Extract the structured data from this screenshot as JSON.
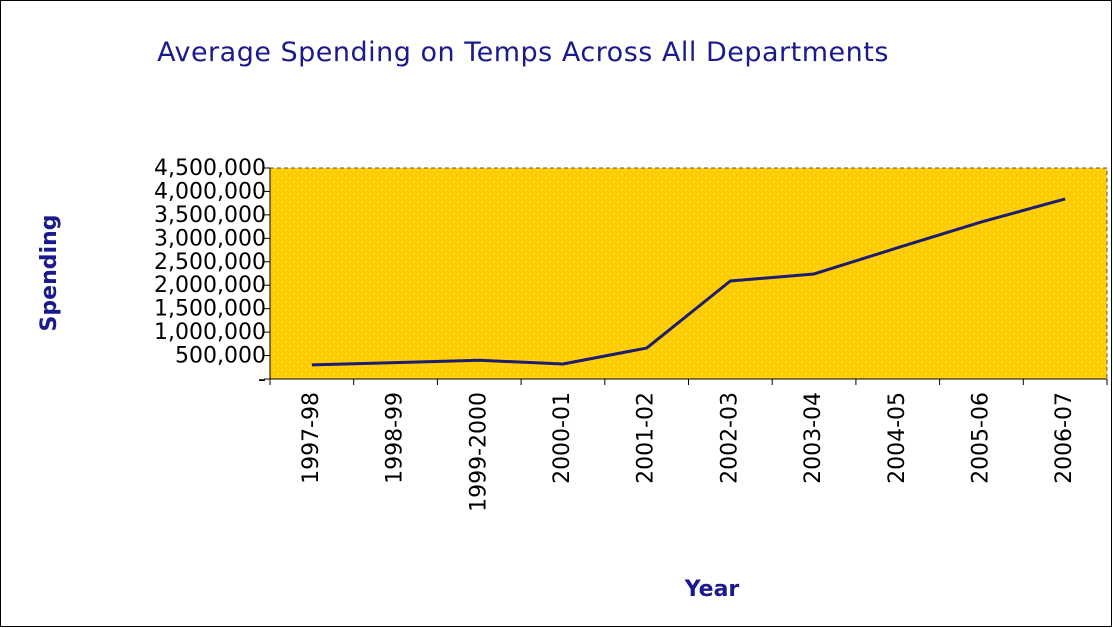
{
  "chart_data": {
    "type": "line",
    "title": "Average Spending on Temps Across All Departments",
    "x_label": "Year",
    "y_label": "Spending",
    "categories": [
      "1997-98",
      "1998-99",
      "1999-2000",
      "2000-01",
      "2001-02",
      "2002-03",
      "2003-04",
      "2004-05",
      "2005-06",
      "2006-07"
    ],
    "series": [
      {
        "name": "Spending",
        "color": "#1c1c70",
        "values": [
          300000,
          350000,
          400000,
          320000,
          660000,
          2090000,
          2240000,
          2800000,
          3350000,
          3840000
        ]
      }
    ],
    "ylim": [
      0,
      4500000
    ],
    "yticks": [
      {
        "value": 0,
        "label": "-"
      },
      {
        "value": 500000,
        "label": "500,000"
      },
      {
        "value": 1000000,
        "label": "1,000,000"
      },
      {
        "value": 1500000,
        "label": "1,500,000"
      },
      {
        "value": 2000000,
        "label": "2,000,000"
      },
      {
        "value": 2500000,
        "label": "2,500,000"
      },
      {
        "value": 3000000,
        "label": "3,000,000"
      },
      {
        "value": 3500000,
        "label": "3,500,000"
      },
      {
        "value": 4000000,
        "label": "4,000,000"
      },
      {
        "value": 4500000,
        "label": "4,500,000"
      }
    ],
    "grid": false,
    "legend": false,
    "plot_background": "#ffcc00"
  }
}
